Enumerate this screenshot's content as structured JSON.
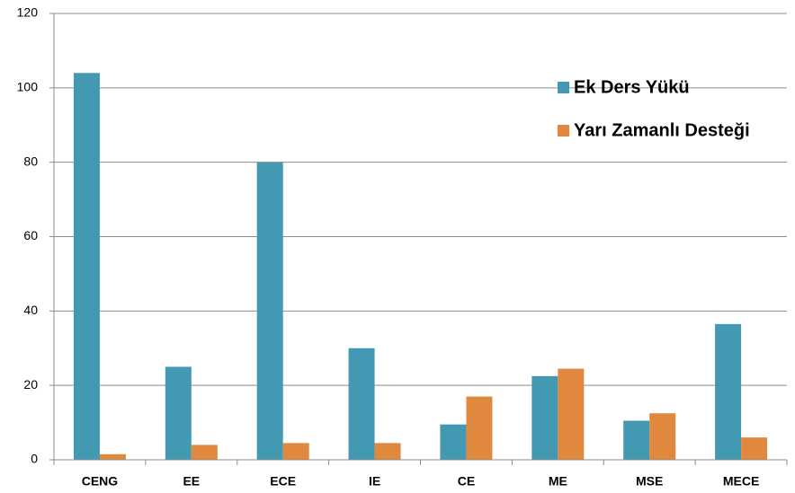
{
  "chart_data": {
    "type": "bar",
    "categories": [
      "CENG",
      "EE",
      "ECE",
      "IE",
      "CE",
      "ME",
      "MSE",
      "MECE"
    ],
    "series": [
      {
        "name": "Ek Ders Yükü",
        "color": "#4299b1",
        "values": [
          104,
          25,
          80,
          30,
          9.5,
          22.5,
          10.5,
          36.5
        ]
      },
      {
        "name": "Yarı Zamanlı Desteği",
        "color": "#e0883e",
        "values": [
          1.5,
          4,
          4.5,
          4.5,
          17,
          24.5,
          12.5,
          6
        ]
      }
    ],
    "ylim": [
      0,
      120
    ],
    "yticks": [
      0,
      20,
      40,
      60,
      80,
      100,
      120
    ],
    "grid": true,
    "legend": "upper right"
  }
}
